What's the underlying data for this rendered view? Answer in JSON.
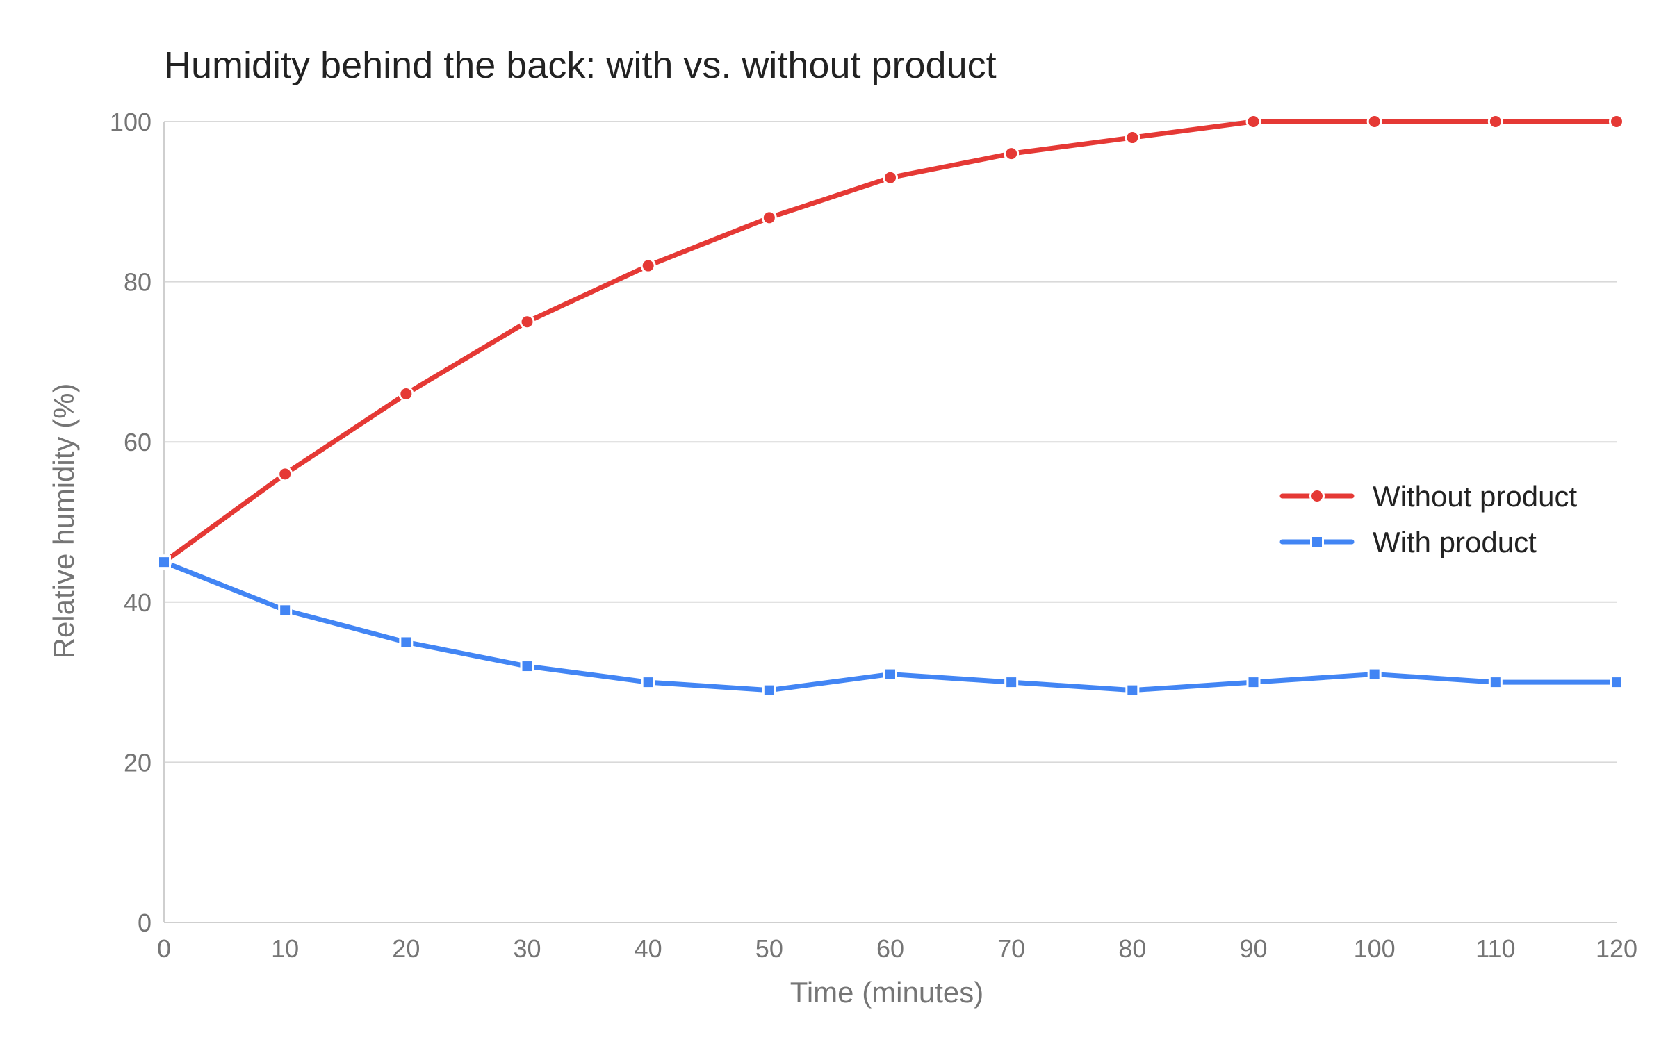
{
  "chart_data": {
    "type": "line",
    "title": "Humidity behind the back: with vs. without product",
    "xlabel": "Time (minutes)",
    "ylabel": "Relative humidity (%)",
    "x": [
      0,
      10,
      20,
      30,
      40,
      50,
      60,
      70,
      80,
      90,
      100,
      110,
      120
    ],
    "xlim": [
      0,
      120
    ],
    "ylim": [
      0,
      100
    ],
    "x_ticks": [
      "0",
      "10",
      "20",
      "30",
      "40",
      "50",
      "60",
      "70",
      "80",
      "90",
      "100",
      "110",
      "120"
    ],
    "y_ticks": [
      "0",
      "20",
      "40",
      "60",
      "80",
      "100"
    ],
    "grid": true,
    "legend_position": "right",
    "series": [
      {
        "name": "Without product",
        "color": "#e53935",
        "marker": "circle",
        "values": [
          45,
          56,
          66,
          75,
          82,
          88,
          93,
          96,
          98,
          100,
          100,
          100,
          100
        ]
      },
      {
        "name": "With product",
        "color": "#4285f4",
        "marker": "square",
        "values": [
          45,
          39,
          35,
          32,
          30,
          29,
          31,
          30,
          29,
          30,
          31,
          30,
          30
        ]
      }
    ]
  }
}
